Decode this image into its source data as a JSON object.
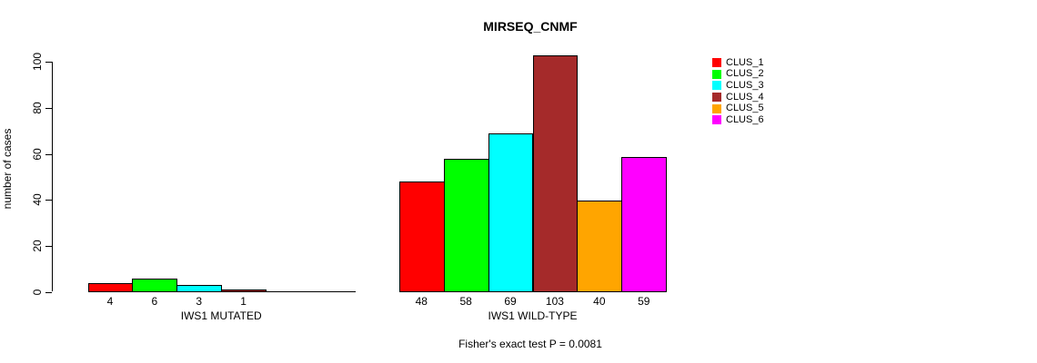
{
  "chart_data": {
    "type": "bar",
    "title": "MIRSEQ_CNMF",
    "ylabel": "number of cases",
    "subtitle": "Fisher's exact test P = 0.0081",
    "ylim": [
      0,
      100
    ],
    "yticks": [
      0,
      20,
      40,
      60,
      80,
      100
    ],
    "grid": false,
    "legend_position": "right",
    "categories": [
      "IWS1 MUTATED",
      "IWS1 WILD-TYPE"
    ],
    "series": [
      {
        "name": "CLUS_1",
        "color": "#FF0000",
        "values": [
          4,
          48
        ]
      },
      {
        "name": "CLUS_2",
        "color": "#00FF00",
        "values": [
          6,
          58
        ]
      },
      {
        "name": "CLUS_3",
        "color": "#00FFFF",
        "values": [
          3,
          69
        ]
      },
      {
        "name": "CLUS_4",
        "color": "#A52A2A",
        "values": [
          1,
          103
        ]
      },
      {
        "name": "CLUS_5",
        "color": "#FFA500",
        "values": [
          0,
          40
        ]
      },
      {
        "name": "CLUS_6",
        "color": "#FF00FF",
        "values": [
          0,
          59
        ]
      }
    ],
    "bar_value_labels": true,
    "hide_zero_labels": true
  }
}
